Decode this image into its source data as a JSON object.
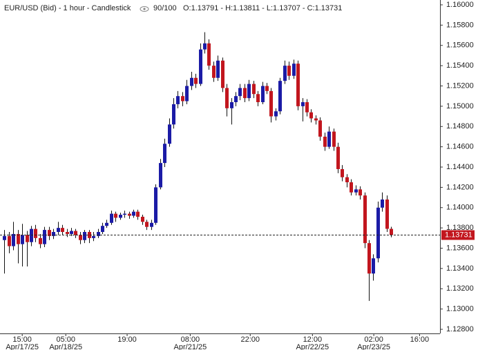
{
  "chart_data": {
    "type": "candlestick",
    "title": "EUR/USD (Bid) - 1 hour - Candlestick",
    "subtitle": "90/100",
    "ohlc_label": "O:1.13791 - H:1.13811 - L:1.13707 - C:1.13731",
    "up_color": "#1b1ba6",
    "down_color": "#c2161e",
    "open": [
      1.1368,
      1.1372,
      1.1362,
      1.1374,
      1.1364,
      1.1373,
      1.1366,
      1.1379,
      1.137,
      1.1364,
      1.1378,
      1.1372,
      1.1376,
      1.138,
      1.1376,
      1.1374,
      1.1377,
      1.1373,
      1.1368,
      1.1376,
      1.137,
      1.1372,
      1.1376,
      1.1382,
      1.1385,
      1.1394,
      1.139,
      1.1393,
      1.1394,
      1.1392,
      1.1396,
      1.1391,
      1.1386,
      1.1381,
      1.1385,
      1.142,
      1.1444,
      1.1463,
      1.1482,
      1.1502,
      1.151,
      1.1505,
      1.152,
      1.1528,
      1.1522,
      1.1556,
      1.1562,
      1.154,
      1.1528,
      1.1545,
      1.1518,
      1.1498,
      1.1504,
      1.151,
      1.1518,
      1.1508,
      1.1522,
      1.1512,
      1.1504,
      1.152,
      1.1515,
      1.149,
      1.1495,
      1.1525,
      1.154,
      1.153,
      1.1542,
      1.15,
      1.1504,
      1.1494,
      1.1488,
      1.1486,
      1.147,
      1.146,
      1.1475,
      1.146,
      1.1438,
      1.143,
      1.1425,
      1.1415,
      1.1418,
      1.1412,
      1.1365,
      1.1335,
      1.135,
      1.14,
      1.1408,
      1.13791
    ],
    "high": [
      1.1378,
      1.1376,
      1.1386,
      1.1378,
      1.1384,
      1.1377,
      1.1382,
      1.1383,
      1.1374,
      1.1381,
      1.1381,
      1.1379,
      1.1386,
      1.1383,
      1.1379,
      1.138,
      1.1379,
      1.1376,
      1.1378,
      1.1378,
      1.1376,
      1.1379,
      1.1385,
      1.1388,
      1.1397,
      1.1396,
      1.1395,
      1.1397,
      1.1396,
      1.1398,
      1.1398,
      1.1393,
      1.1388,
      1.1388,
      1.1423,
      1.1448,
      1.1468,
      1.1488,
      1.1508,
      1.1515,
      1.1514,
      1.1526,
      1.1534,
      1.1532,
      1.1562,
      1.1573,
      1.1566,
      1.1544,
      1.155,
      1.1548,
      1.1522,
      1.1508,
      1.1514,
      1.1522,
      1.1522,
      1.1526,
      1.1525,
      1.1515,
      1.1524,
      1.1523,
      1.1518,
      1.1498,
      1.1528,
      1.1545,
      1.1544,
      1.1546,
      1.1545,
      1.1508,
      1.1507,
      1.1497,
      1.1491,
      1.1489,
      1.1474,
      1.148,
      1.1478,
      1.1464,
      1.1442,
      1.1433,
      1.1428,
      1.1422,
      1.1421,
      1.1415,
      1.1368,
      1.1354,
      1.1406,
      1.1415,
      1.1412,
      1.13811
    ],
    "low": [
      1.1335,
      1.1355,
      1.1358,
      1.1345,
      1.1342,
      1.1342,
      1.1362,
      1.1366,
      1.136,
      1.1361,
      1.1368,
      1.1369,
      1.1373,
      1.1373,
      1.1371,
      1.1372,
      1.137,
      1.1364,
      1.1365,
      1.1365,
      1.1367,
      1.137,
      1.1374,
      1.138,
      1.1383,
      1.1386,
      1.1388,
      1.139,
      1.1389,
      1.139,
      1.1388,
      1.1383,
      1.1378,
      1.1378,
      1.1383,
      1.1418,
      1.144,
      1.146,
      1.1478,
      1.1498,
      1.15,
      1.1502,
      1.1516,
      1.1518,
      1.152,
      1.1552,
      1.1536,
      1.1524,
      1.1525,
      1.1514,
      1.149,
      1.1482,
      1.15,
      1.1506,
      1.1504,
      1.1505,
      1.1508,
      1.15,
      1.1502,
      1.1512,
      1.1484,
      1.1486,
      1.1492,
      1.1522,
      1.1526,
      1.1527,
      1.1496,
      1.1485,
      1.149,
      1.1484,
      1.1482,
      1.1466,
      1.1456,
      1.1458,
      1.1456,
      1.1434,
      1.1426,
      1.142,
      1.1412,
      1.1412,
      1.1408,
      1.136,
      1.1308,
      1.1328,
      1.1346,
      1.1396,
      1.1376,
      1.13707
    ],
    "close": [
      1.1372,
      1.1362,
      1.1374,
      1.1364,
      1.1373,
      1.1366,
      1.1379,
      1.137,
      1.1364,
      1.1378,
      1.1372,
      1.1376,
      1.138,
      1.1376,
      1.1374,
      1.1377,
      1.1373,
      1.1368,
      1.1376,
      1.137,
      1.1372,
      1.1376,
      1.1382,
      1.1385,
      1.1394,
      1.139,
      1.1393,
      1.1394,
      1.1392,
      1.1396,
      1.1391,
      1.1386,
      1.1381,
      1.1385,
      1.142,
      1.1444,
      1.1463,
      1.1482,
      1.1502,
      1.151,
      1.1505,
      1.152,
      1.1528,
      1.1522,
      1.1556,
      1.1562,
      1.154,
      1.1528,
      1.1545,
      1.1518,
      1.1498,
      1.1504,
      1.151,
      1.1518,
      1.1508,
      1.1522,
      1.1512,
      1.1504,
      1.152,
      1.1515,
      1.149,
      1.1495,
      1.1525,
      1.154,
      1.153,
      1.1542,
      1.15,
      1.1504,
      1.1494,
      1.1488,
      1.1486,
      1.147,
      1.146,
      1.1475,
      1.146,
      1.1438,
      1.143,
      1.1425,
      1.1415,
      1.1418,
      1.1412,
      1.1365,
      1.1335,
      1.135,
      1.14,
      1.1408,
      1.13791,
      1.13731
    ],
    "last_price": {
      "value": 1.13731,
      "label": "1.13731"
    },
    "xlim": [
      -1,
      98
    ],
    "xticks": [
      {
        "value": 4,
        "label": "15:00",
        "date": "Apr/17/25"
      },
      {
        "value": 13.8,
        "label": "05:00",
        "date": "Apr/18/25"
      },
      {
        "value": 27.6,
        "label": "19:00"
      },
      {
        "value": 41.8,
        "label": "08:00",
        "date": "Apr/21/25"
      },
      {
        "value": 55.3,
        "label": "22:00"
      },
      {
        "value": 69.3,
        "label": "12:00",
        "date": "Apr/22/25"
      },
      {
        "value": 83.1,
        "label": "02:00",
        "date": "Apr/23/25"
      },
      {
        "value": 93.4,
        "label": "16:00"
      }
    ],
    "ylim": [
      1.1276,
      1.1604
    ],
    "yticks": [
      {
        "value": 1.16,
        "label": "1.16000"
      },
      {
        "value": 1.158,
        "label": "1.15800"
      },
      {
        "value": 1.156,
        "label": "1.15600"
      },
      {
        "value": 1.154,
        "label": "1.15400"
      },
      {
        "value": 1.152,
        "label": "1.15200"
      },
      {
        "value": 1.15,
        "label": "1.15000"
      },
      {
        "value": 1.148,
        "label": "1.14800"
      },
      {
        "value": 1.146,
        "label": "1.14600"
      },
      {
        "value": 1.144,
        "label": "1.14400"
      },
      {
        "value": 1.142,
        "label": "1.14200"
      },
      {
        "value": 1.14,
        "label": "1.14000"
      },
      {
        "value": 1.138,
        "label": "1.13800"
      },
      {
        "value": 1.136,
        "label": "1.13600"
      },
      {
        "value": 1.134,
        "label": "1.13400"
      },
      {
        "value": 1.132,
        "label": "1.13200"
      },
      {
        "value": 1.13,
        "label": "1.13000"
      },
      {
        "value": 1.128,
        "label": "1.12800"
      }
    ]
  }
}
